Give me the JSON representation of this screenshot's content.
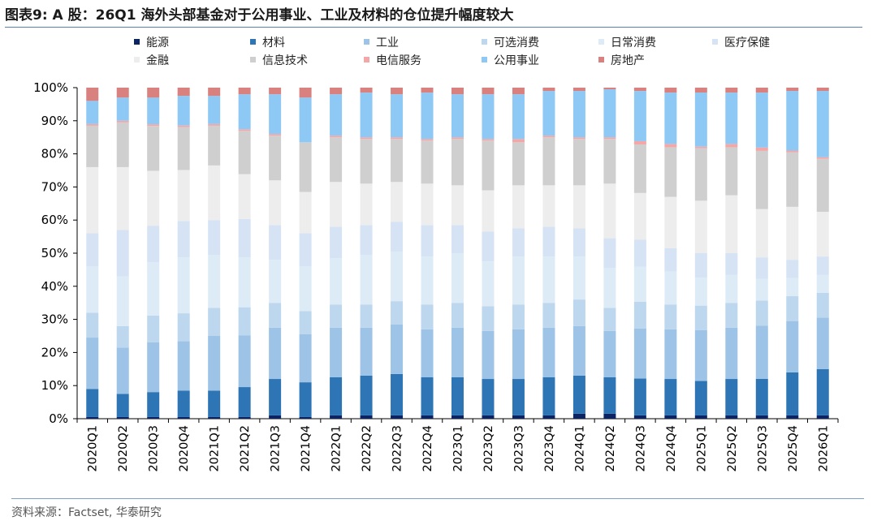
{
  "figure": {
    "title": "图表9:  A 股：26Q1 海外头部基金对于公用事业、工业及材料的仓位提升幅度较大",
    "source": "资料来源：Factset,  华泰研究"
  },
  "chart_data": {
    "type": "bar",
    "stacked": true,
    "ylim": [
      0,
      100
    ],
    "y_ticks": [
      "0%",
      "10%",
      "20%",
      "30%",
      "40%",
      "50%",
      "60%",
      "70%",
      "80%",
      "90%",
      "100%"
    ],
    "legend_placement": "top",
    "categories": [
      "2020Q1",
      "2020Q2",
      "2020Q3",
      "2020Q4",
      "2021Q1",
      "2021Q2",
      "2021Q3",
      "2021Q4",
      "2022Q1",
      "2022Q2",
      "2022Q3",
      "2022Q4",
      "2023Q1",
      "2023Q2",
      "2023Q3",
      "2023Q4",
      "2024Q1",
      "2024Q2",
      "2024Q3",
      "2024Q4",
      "2025Q1",
      "2025Q2",
      "2025Q3",
      "2025Q4",
      "2026Q1"
    ],
    "series": [
      {
        "name": "能源",
        "color": "#0c2461",
        "values": [
          0.5,
          0.5,
          0.5,
          0.5,
          0.5,
          0.5,
          1.0,
          0.5,
          1.0,
          1.0,
          1.0,
          1.0,
          1.0,
          1.0,
          1.0,
          1.0,
          1.5,
          1.5,
          1.0,
          1.0,
          1.0,
          1.0,
          1.0,
          1.0,
          1.0
        ]
      },
      {
        "name": "材料",
        "color": "#2e75b6",
        "values": [
          8.5,
          7.0,
          7.5,
          8.0,
          8.0,
          9.0,
          11.0,
          10.5,
          11.5,
          12.0,
          12.5,
          11.5,
          11.5,
          11.0,
          11.0,
          11.5,
          11.5,
          11.0,
          11.0,
          11.0,
          10.5,
          11.0,
          11.0,
          13.0,
          14.0
        ]
      },
      {
        "name": "工业",
        "color": "#9dc3e6",
        "values": [
          15.5,
          14.0,
          15.0,
          15.0,
          16.5,
          15.5,
          15.5,
          14.5,
          15.0,
          14.5,
          15.0,
          14.5,
          15.0,
          14.5,
          15.0,
          15.0,
          15.0,
          14.0,
          15.0,
          15.0,
          15.5,
          15.5,
          16.0,
          15.5,
          15.5
        ]
      },
      {
        "name": "可选消费",
        "color": "#bdd7ee",
        "values": [
          7.5,
          6.5,
          8.0,
          8.5,
          8.5,
          8.5,
          7.5,
          7.0,
          7.0,
          7.0,
          7.0,
          7.5,
          7.5,
          7.5,
          7.5,
          7.5,
          8.0,
          7.0,
          8.0,
          7.5,
          7.5,
          7.5,
          7.5,
          7.5,
          7.5
        ]
      },
      {
        "name": "日常消费",
        "color": "#ddebf7",
        "values": [
          14.0,
          15.0,
          16.0,
          17.0,
          16.0,
          15.0,
          13.0,
          13.5,
          14.0,
          15.0,
          15.0,
          14.5,
          15.0,
          13.5,
          14.5,
          14.0,
          13.0,
          12.0,
          10.5,
          10.0,
          8.5,
          8.5,
          6.5,
          5.5,
          5.5
        ]
      },
      {
        "name": "医疗保健",
        "color": "#d6e3f5",
        "values": [
          10.0,
          14.0,
          11.0,
          11.0,
          10.5,
          11.5,
          10.5,
          10.0,
          9.5,
          9.0,
          9.0,
          9.5,
          8.5,
          9.0,
          8.5,
          9.0,
          8.5,
          9.0,
          8.0,
          7.0,
          7.5,
          6.5,
          6.5,
          5.5,
          5.5
        ]
      },
      {
        "name": "金融",
        "color": "#ededed",
        "values": [
          20.0,
          19.0,
          16.5,
          15.5,
          16.5,
          13.5,
          13.5,
          12.5,
          13.5,
          12.5,
          12.0,
          12.5,
          12.0,
          12.5,
          13.0,
          12.5,
          13.0,
          16.5,
          14.0,
          15.5,
          16.0,
          17.5,
          14.5,
          16.0,
          13.5
        ]
      },
      {
        "name": "信息技术",
        "color": "#cfcfcf",
        "values": [
          12.5,
          13.5,
          13.5,
          13.0,
          12.0,
          13.0,
          13.5,
          15.0,
          13.5,
          13.5,
          13.0,
          13.0,
          14.0,
          15.0,
          13.0,
          14.5,
          14.0,
          13.5,
          14.5,
          15.0,
          16.0,
          14.5,
          17.5,
          16.5,
          16.0
        ]
      },
      {
        "name": "电信服务",
        "color": "#f4a7a7",
        "values": [
          0.5,
          0.5,
          0.5,
          0.5,
          0.5,
          0.5,
          0.5,
          0.0,
          0.5,
          0.5,
          0.5,
          0.5,
          0.5,
          0.5,
          1.0,
          0.5,
          0.5,
          0.5,
          1.0,
          1.0,
          0.5,
          1.0,
          1.0,
          0.5,
          0.5
        ]
      },
      {
        "name": "公用事业",
        "color": "#8ec9f5",
        "values": [
          7.0,
          7.0,
          8.0,
          9.0,
          8.5,
          10.5,
          12.0,
          13.5,
          12.5,
          13.5,
          13.0,
          14.0,
          13.0,
          13.5,
          13.5,
          13.5,
          14.0,
          14.5,
          15.0,
          15.5,
          16.5,
          15.5,
          16.5,
          18.0,
          20.0
        ]
      },
      {
        "name": "房地产",
        "color": "#d9817f",
        "values": [
          4.0,
          3.0,
          3.0,
          2.5,
          2.5,
          2.0,
          2.0,
          3.0,
          2.0,
          1.5,
          2.0,
          1.5,
          2.0,
          2.0,
          2.0,
          1.0,
          1.0,
          0.5,
          1.0,
          1.5,
          1.5,
          1.5,
          1.5,
          1.0,
          1.0
        ]
      }
    ]
  }
}
